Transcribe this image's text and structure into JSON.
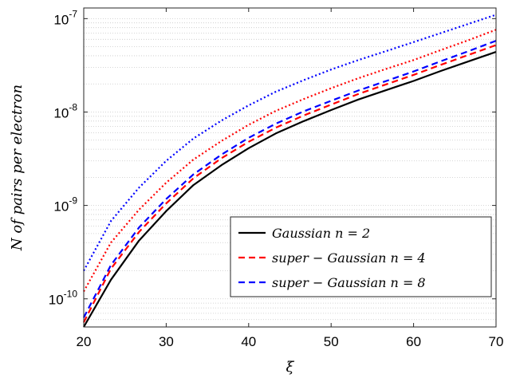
{
  "chart_data": {
    "type": "line",
    "xlabel": "ξ",
    "ylabel": "N of pairs per electron",
    "xlim": [
      20,
      70
    ],
    "ylim": [
      5e-11,
      1.3e-07
    ],
    "yscale": "log",
    "grid": "y-minor-dotted",
    "x_ticks": [
      20,
      30,
      40,
      50,
      60,
      70
    ],
    "x_tick_labels": [
      "20",
      "30",
      "40",
      "50",
      "60",
      "70"
    ],
    "y_ticks": [
      1e-10,
      1e-09,
      1e-08,
      1e-07
    ],
    "y_tick_labels": [
      {
        "base": "10",
        "exp": "-10"
      },
      {
        "base": "10",
        "exp": "-9"
      },
      {
        "base": "10",
        "exp": "-8"
      },
      {
        "base": "10",
        "exp": "-7"
      }
    ],
    "legend_placement": "bottom-right",
    "legend": [
      "Gaussian n = 2",
      "super − Gaussian n = 4",
      "super − Gaussian n = 8"
    ],
    "series": [
      {
        "name": "Gaussian n = 2",
        "style": "solid",
        "color": "#000000",
        "in_legend": true,
        "x": [
          20,
          23.3,
          26.7,
          30,
          33.3,
          36.7,
          40,
          43.3,
          46.7,
          50,
          53.3,
          56.7,
          60,
          63.3,
          66.7,
          70
        ],
        "y": [
          5e-11,
          1.6e-10,
          4.2e-10,
          8.7e-10,
          1.65e-09,
          2.7e-09,
          4.1e-09,
          5.9e-09,
          8e-09,
          1.05e-08,
          1.36e-08,
          1.72e-08,
          2.15e-08,
          2.75e-08,
          3.5e-08,
          4.4e-08
        ]
      },
      {
        "name": "super − Gaussian n = 4",
        "style": "dashed",
        "color": "#ff0000",
        "in_legend": true,
        "x": [
          20,
          23.3,
          26.7,
          30,
          33.3,
          36.7,
          40,
          43.3,
          46.7,
          50,
          53.3,
          56.7,
          60,
          63.3,
          66.7,
          70
        ],
        "y": [
          5.6e-11,
          2.1e-10,
          5.2e-10,
          1.05e-09,
          1.95e-09,
          3.2e-09,
          4.8e-09,
          6.8e-09,
          9.2e-09,
          1.2e-08,
          1.56e-08,
          1.98e-08,
          2.5e-08,
          3.2e-08,
          4.1e-08,
          5.2e-08
        ]
      },
      {
        "name": "super − Gaussian n = 8",
        "style": "dashed",
        "color": "#0000ff",
        "in_legend": true,
        "x": [
          20,
          23.3,
          26.7,
          30,
          33.3,
          36.7,
          40,
          43.3,
          46.7,
          50,
          53.3,
          56.7,
          60,
          63.3,
          66.7,
          70
        ],
        "y": [
          6.3e-11,
          2.3e-10,
          5.8e-10,
          1.17e-09,
          2.15e-09,
          3.5e-09,
          5.3e-09,
          7.5e-09,
          1.02e-08,
          1.32e-08,
          1.7e-08,
          2.15e-08,
          2.72e-08,
          3.5e-08,
          4.5e-08,
          5.8e-08
        ]
      },
      {
        "style": "dotted",
        "color": "#ff0000",
        "in_legend": false,
        "x": [
          20,
          23.3,
          26.7,
          30,
          33.3,
          36.7,
          40,
          43.3,
          46.7,
          50,
          53.3,
          56.7,
          60,
          63.3,
          66.7,
          70
        ],
        "y": [
          1.2e-10,
          4e-10,
          9e-10,
          1.75e-09,
          3.1e-09,
          4.9e-09,
          7.3e-09,
          1.03e-08,
          1.38e-08,
          1.8e-08,
          2.3e-08,
          2.9e-08,
          3.6e-08,
          4.6e-08,
          5.9e-08,
          7.6e-08
        ]
      },
      {
        "style": "dotted",
        "color": "#0000ff",
        "in_legend": false,
        "x": [
          20,
          23.3,
          26.7,
          30,
          33.3,
          36.7,
          40,
          43.3,
          46.7,
          50,
          53.3,
          56.7,
          60,
          63.3,
          66.7,
          70
        ],
        "y": [
          2e-10,
          6.8e-10,
          1.55e-09,
          3e-09,
          5.2e-09,
          8.1e-09,
          1.18e-08,
          1.65e-08,
          2.2e-08,
          2.85e-08,
          3.6e-08,
          4.5e-08,
          5.6e-08,
          7e-08,
          8.8e-08,
          1.1e-07
        ]
      }
    ]
  }
}
